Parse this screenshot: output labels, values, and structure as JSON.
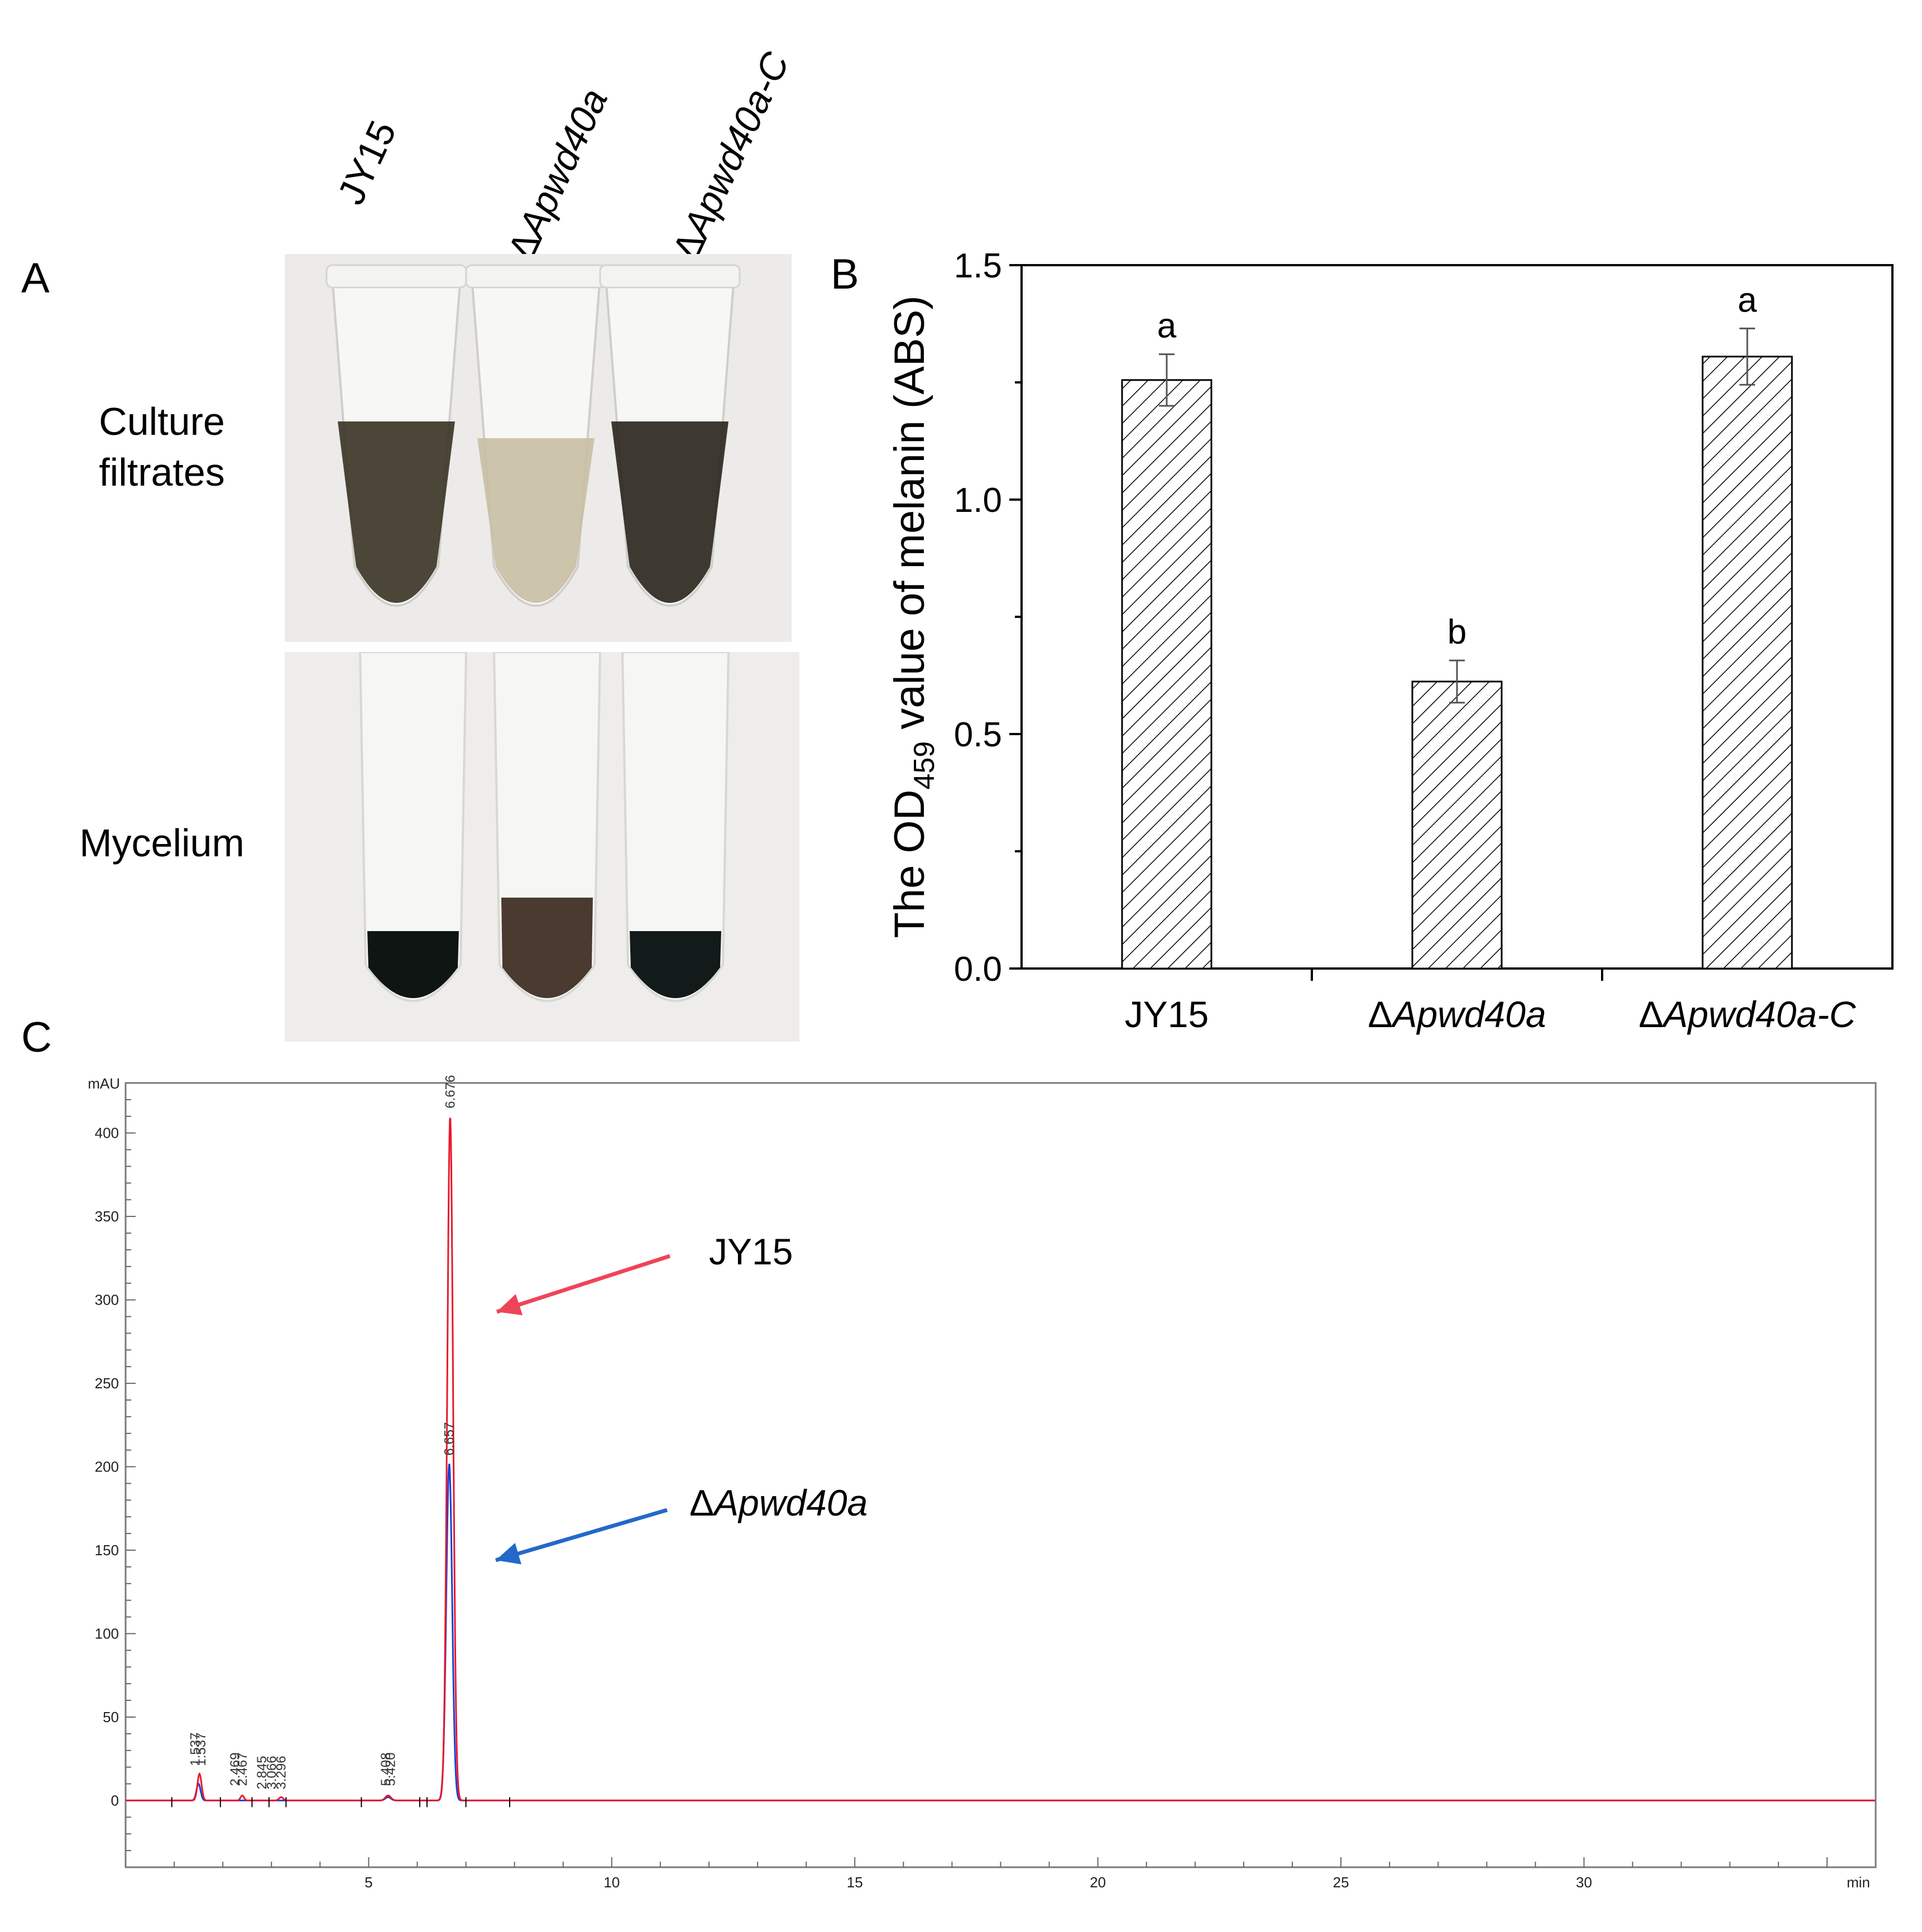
{
  "panels": {
    "a": "A",
    "b": "B",
    "c": "C"
  },
  "panel_a": {
    "strain_labels": [
      {
        "prefix": "",
        "name": "JY15"
      },
      {
        "prefix": "Δ",
        "name": "Apwd40a"
      },
      {
        "prefix": "Δ",
        "name": "Apwd40a-C"
      }
    ],
    "row_labels": {
      "top_line1": "Culture",
      "top_line2": "filtrates",
      "bottom": "Mycelium"
    },
    "tube_colors": {
      "filtrate": [
        "#3d3628",
        "#c9bfa5",
        "#2c2820"
      ],
      "mycelium": [
        "#0f1512",
        "#4a3a30",
        "#121a1a"
      ]
    }
  },
  "chart_data": [
    {
      "type": "bar",
      "panel": "B",
      "categories": [
        {
          "prefix": "",
          "name": "JY15",
          "italic": false
        },
        {
          "prefix": "Δ",
          "name": "Apwd40a",
          "italic": true
        },
        {
          "prefix": "Δ",
          "name": "Apwd40a-C",
          "italic": true
        }
      ],
      "values": [
        1.255,
        0.612,
        1.305
      ],
      "errors": [
        0.055,
        0.045,
        0.06
      ],
      "significance": [
        "a",
        "b",
        "a"
      ],
      "ylabel": {
        "pre": "The OD",
        "sub": "459",
        "post": " value of melanin (ABS)"
      },
      "ylim": [
        0,
        1.5
      ],
      "yticks": [
        "0.0",
        "0.5",
        "1.0",
        "1.5"
      ],
      "bar_pattern": "diagonal hatch"
    },
    {
      "type": "line",
      "panel": "C",
      "y_unit": "mAU",
      "x_unit": "min",
      "xlim": [
        0,
        36
      ],
      "ylim": [
        -40,
        430
      ],
      "xticks": [
        "5",
        "10",
        "15",
        "20",
        "25",
        "30"
      ],
      "yticks": [
        "0",
        "50",
        "100",
        "150",
        "200",
        "250",
        "300",
        "350",
        "400"
      ],
      "series": [
        {
          "name": "JY15",
          "color": "#e8192c",
          "peak_rt": 6.676,
          "peak_height": 410
        },
        {
          "name": "ΔApwd40a",
          "color": "#1a3fd6",
          "peak_rt": 6.657,
          "peak_height": 202
        }
      ],
      "peak_labels": [
        {
          "rt": 6.676,
          "text": "6.676",
          "y": 412
        },
        {
          "rt": 6.657,
          "text": "6.657",
          "y": 204
        },
        {
          "rt": 1.55,
          "text": "1.537",
          "y": 18
        },
        {
          "rt": 1.43,
          "text": "1.537",
          "y": 18
        },
        {
          "rt": 2.25,
          "text": "2.469",
          "y": 6
        },
        {
          "rt": 2.4,
          "text": "2.467",
          "y": 6
        },
        {
          "rt": 2.8,
          "text": "2.845",
          "y": 4
        },
        {
          "rt": 3.0,
          "text": "3.066",
          "y": 4
        },
        {
          "rt": 3.2,
          "text": "3.296",
          "y": 4
        },
        {
          "rt": 5.35,
          "text": "5.408",
          "y": 6
        },
        {
          "rt": 5.45,
          "text": "5.420",
          "y": 6
        }
      ],
      "arrows": [
        {
          "series": "JY15",
          "label": "JY15",
          "color": "#ef4458"
        },
        {
          "series": "ΔApwd40a",
          "label_prefix": "Δ",
          "label_name": "Apwd40a",
          "color": "#2369c8"
        }
      ]
    }
  ]
}
